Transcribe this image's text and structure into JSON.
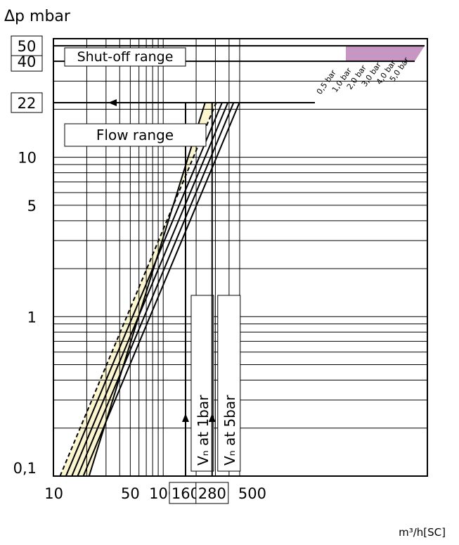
{
  "chart_data": {
    "type": "line",
    "title": "",
    "ylabel": "Δp mbar",
    "xlabel": "m³/h[SC]",
    "x_scale": "log",
    "y_scale": "log",
    "xlim": [
      10,
      500
    ],
    "ylim": [
      0.1,
      60
    ],
    "grid": true,
    "x_ticks": [
      {
        "value": 10,
        "label": "10",
        "boxed": false
      },
      {
        "value": 50,
        "label": "50",
        "boxed": false
      },
      {
        "value": 100,
        "label": "100",
        "boxed": false
      },
      {
        "value": 160,
        "label": "160",
        "boxed": true
      },
      {
        "value": 280,
        "label": "280",
        "boxed": true
      },
      {
        "value": 500,
        "label": "500",
        "boxed": false
      }
    ],
    "y_ticks": [
      {
        "value": 0.1,
        "label": "0,1",
        "boxed": false
      },
      {
        "value": 1,
        "label": "1",
        "boxed": false
      },
      {
        "value": 5,
        "label": "5",
        "boxed": false
      },
      {
        "value": 10,
        "label": "10",
        "boxed": false
      },
      {
        "value": 22,
        "label": "22",
        "boxed": true
      },
      {
        "value": 40,
        "label": "40",
        "boxed": true
      },
      {
        "value": 50,
        "label": "50",
        "boxed": true
      }
    ],
    "series": [
      {
        "name": "0,5 bar",
        "x": [
          11.4,
          305
        ],
        "y": [
          0.1,
          22
        ],
        "dashed": true
      },
      {
        "name": "1,0 bar",
        "x": [
          12.9,
          345
        ],
        "y": [
          0.1,
          22
        ]
      },
      {
        "name": "2,0 bar",
        "x": [
          14.6,
          390
        ],
        "y": [
          0.1,
          22
        ]
      },
      {
        "name": "3,0 bar",
        "x": [
          16.5,
          440
        ],
        "y": [
          0.1,
          22
        ]
      },
      {
        "name": "4,0 bar",
        "x": [
          18.6,
          497
        ],
        "y": [
          0.1,
          22
        ]
      },
      {
        "name": "5,0 bar",
        "x": [
          21.0,
          280
        ],
        "y": [
          0.1,
          22
        ]
      }
    ],
    "regions": {
      "shut_off": {
        "label": "Shut-off range",
        "y_range": [
          40,
          50
        ],
        "color": "#c896c3"
      },
      "flow": {
        "label": "Flow range",
        "y_max": 22,
        "color": "#fbf6cf"
      }
    },
    "annotations": [
      {
        "label": "Vₙ at 1bar",
        "x": 160
      },
      {
        "label": "Vₙ at 5bar",
        "x": 280
      }
    ]
  }
}
